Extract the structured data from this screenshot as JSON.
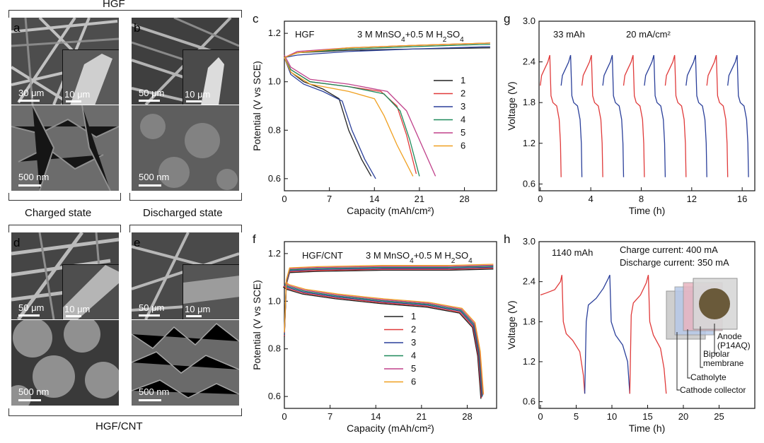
{
  "sem": {
    "top_group": "HGF",
    "bottom_group": "HGF/CNT",
    "charged": "Charged state",
    "discharged": "Discharged state",
    "panels": {
      "a": {
        "letter": "a",
        "scale_main": "30 μm",
        "scale_inset": "10 μm",
        "scale_bottom": "500 nm"
      },
      "b": {
        "letter": "b",
        "scale_main": "50 μm",
        "scale_inset": "10 μm",
        "scale_bottom": "500 nm"
      },
      "d": {
        "letter": "d",
        "scale_main": "50 μm",
        "scale_inset": "10 μm",
        "scale_bottom": "500 nm"
      },
      "e": {
        "letter": "e",
        "scale_main": "50 μm",
        "scale_inset": "10 μm",
        "scale_bottom": "500 nm"
      }
    }
  },
  "chart_data": [
    {
      "id": "c",
      "type": "line",
      "letter": "c",
      "annotation_left": "HGF",
      "annotation_right": "3 M MnSO4+0.5 M H2SO4",
      "xlabel": "Capacity (mAh/cm²)",
      "ylabel": "Potential (V vs SCE)",
      "xlim": [
        0,
        33
      ],
      "ylim": [
        0.55,
        1.25
      ],
      "xticks": [
        "0",
        "7",
        "14",
        "21",
        "28"
      ],
      "yticks": [
        "0.6",
        "0.8",
        "1.0",
        "1.2"
      ],
      "legend_position": "right",
      "series": [
        {
          "name": "1",
          "color": "#222222",
          "charge": [
            [
              0,
              1.1
            ],
            [
              2,
              1.12
            ],
            [
              10,
              1.13
            ],
            [
              20,
              1.135
            ],
            [
              32,
              1.14
            ]
          ],
          "discharge": [
            [
              0,
              1.1
            ],
            [
              1,
              1.04
            ],
            [
              3,
              1.0
            ],
            [
              6,
              0.97
            ],
            [
              8.5,
              0.93
            ],
            [
              10,
              0.8
            ],
            [
              12,
              0.68
            ],
            [
              13.5,
              0.61
            ]
          ]
        },
        {
          "name": "2",
          "color": "#e03a3a",
          "charge": [
            [
              0,
              1.1
            ],
            [
              2,
              1.12
            ],
            [
              10,
              1.14
            ],
            [
              20,
              1.15
            ],
            [
              32,
              1.16
            ]
          ],
          "discharge": [
            [
              0,
              1.1
            ],
            [
              1,
              1.05
            ],
            [
              4,
              1.0
            ],
            [
              10,
              0.98
            ],
            [
              15,
              0.96
            ],
            [
              17.5,
              0.9
            ],
            [
              19,
              0.78
            ],
            [
              20.5,
              0.62
            ]
          ]
        },
        {
          "name": "3",
          "color": "#2a3f9a",
          "charge": [
            [
              0,
              1.1
            ],
            [
              2,
              1.11
            ],
            [
              10,
              1.125
            ],
            [
              20,
              1.135
            ],
            [
              32,
              1.145
            ]
          ],
          "discharge": [
            [
              0,
              1.1
            ],
            [
              1,
              1.03
            ],
            [
              3,
              0.99
            ],
            [
              6,
              0.96
            ],
            [
              9,
              0.92
            ],
            [
              10.5,
              0.8
            ],
            [
              12.5,
              0.68
            ],
            [
              14.2,
              0.6
            ]
          ]
        },
        {
          "name": "4",
          "color": "#1e8a5a",
          "charge": [
            [
              0,
              1.1
            ],
            [
              2,
              1.12
            ],
            [
              10,
              1.135
            ],
            [
              20,
              1.145
            ],
            [
              32,
              1.155
            ]
          ],
          "discharge": [
            [
              0,
              1.1
            ],
            [
              1,
              1.05
            ],
            [
              4,
              1.0
            ],
            [
              10,
              0.98
            ],
            [
              15.5,
              0.95
            ],
            [
              18,
              0.88
            ],
            [
              19.5,
              0.76
            ],
            [
              21,
              0.61
            ]
          ]
        },
        {
          "name": "5",
          "color": "#c0408a",
          "charge": [
            [
              0,
              1.1
            ],
            [
              2,
              1.125
            ],
            [
              10,
              1.14
            ],
            [
              20,
              1.15
            ],
            [
              32,
              1.16
            ]
          ],
          "discharge": [
            [
              0,
              1.11
            ],
            [
              1,
              1.06
            ],
            [
              4,
              1.01
            ],
            [
              10,
              0.99
            ],
            [
              16,
              0.96
            ],
            [
              19,
              0.88
            ],
            [
              21,
              0.76
            ],
            [
              23.5,
              0.61
            ]
          ]
        },
        {
          "name": "6",
          "color": "#f0a020",
          "charge": [
            [
              0,
              1.1
            ],
            [
              2,
              1.12
            ],
            [
              10,
              1.14
            ],
            [
              20,
              1.15
            ],
            [
              32,
              1.16
            ]
          ],
          "discharge": [
            [
              0,
              1.1
            ],
            [
              1,
              1.04
            ],
            [
              4,
              0.99
            ],
            [
              10,
              0.96
            ],
            [
              14,
              0.93
            ],
            [
              15.5,
              0.86
            ],
            [
              17.5,
              0.74
            ],
            [
              20,
              0.61
            ]
          ]
        }
      ]
    },
    {
      "id": "f",
      "type": "line",
      "letter": "f",
      "annotation_left": "HGF/CNT",
      "annotation_right": "3 M MnSO4+0.5 M H2SO4",
      "xlabel": "Capacity (mAh/cm²)",
      "ylabel": "Potential (V vs SCE)",
      "xlim": [
        0,
        32.5
      ],
      "ylim": [
        0.55,
        1.25
      ],
      "xticks": [
        "0",
        "7",
        "14",
        "21",
        "28"
      ],
      "yticks": [
        "0.6",
        "0.8",
        "1.0",
        "1.2"
      ],
      "legend_position": "center-right",
      "series": [
        {
          "name": "1",
          "color": "#222222"
        },
        {
          "name": "2",
          "color": "#e03a3a"
        },
        {
          "name": "3",
          "color": "#2a3f9a"
        },
        {
          "name": "4",
          "color": "#1e8a5a"
        },
        {
          "name": "5",
          "color": "#c0408a"
        },
        {
          "name": "6",
          "color": "#f0a020"
        }
      ],
      "charge_curve": [
        [
          0,
          0.86
        ],
        [
          0.3,
          1.08
        ],
        [
          0.8,
          1.13
        ],
        [
          5,
          1.135
        ],
        [
          15,
          1.14
        ],
        [
          25,
          1.14
        ],
        [
          32,
          1.145
        ]
      ],
      "discharge_curve": [
        [
          0,
          1.07
        ],
        [
          0.5,
          1.06
        ],
        [
          3,
          1.04
        ],
        [
          8,
          1.02
        ],
        [
          15,
          1.0
        ],
        [
          22,
          0.985
        ],
        [
          27,
          0.96
        ],
        [
          29,
          0.9
        ],
        [
          29.8,
          0.78
        ],
        [
          30.3,
          0.6
        ]
      ]
    },
    {
      "id": "g",
      "type": "line",
      "letter": "g",
      "annotation_left": "33 mAh",
      "annotation_right": "20 mA/cm²",
      "xlabel": "Time (h)",
      "ylabel": "Voltage (V)",
      "xlim": [
        -0.1,
        17
      ],
      "ylim": [
        0.5,
        3.0
      ],
      "xticks": [
        "0",
        "4",
        "8",
        "12",
        "16"
      ],
      "yticks": [
        "0.6",
        "1.2",
        "1.8",
        "2.4",
        "3.0"
      ],
      "cycle_period_h": 1.65,
      "cycles": 10,
      "colors": [
        "#e03a3a",
        "#2a3f9a"
      ]
    },
    {
      "id": "h",
      "type": "line",
      "letter": "h",
      "annotation_left": "1140 mAh",
      "annotation_right_1": "Charge current: 400 mA",
      "annotation_right_2": "Discharge current: 350 mA",
      "xlabel": "Time (h)",
      "ylabel": "Voltage (V)",
      "xlim": [
        -0.2,
        30
      ],
      "ylim": [
        0.5,
        3.0
      ],
      "xticks": [
        "0",
        "5",
        "10",
        "15",
        "20",
        "25"
      ],
      "yticks": [
        "0.6",
        "1.2",
        "1.8",
        "2.4",
        "3.0"
      ],
      "colors": [
        "#e03a3a",
        "#2a3f9a"
      ],
      "cycles": [
        {
          "color": "#e03a3a",
          "points": [
            [
              0,
              2.2
            ],
            [
              0.8,
              2.23
            ],
            [
              2,
              2.28
            ],
            [
              2.8,
              2.4
            ],
            [
              3.0,
              2.5
            ],
            [
              3.2,
              1.8
            ],
            [
              3.6,
              1.62
            ],
            [
              4.5,
              1.52
            ],
            [
              5.5,
              1.35
            ],
            [
              6,
              1.0
            ],
            [
              6.2,
              0.72
            ]
          ]
        },
        {
          "color": "#2a3f9a",
          "points": [
            [
              6.2,
              0.72
            ],
            [
              6.4,
              1.8
            ],
            [
              6.7,
              2.05
            ],
            [
              7.8,
              2.15
            ],
            [
              8.8,
              2.3
            ],
            [
              9.5,
              2.45
            ],
            [
              9.7,
              2.5
            ],
            [
              9.9,
              1.8
            ],
            [
              10.5,
              1.6
            ],
            [
              11.5,
              1.45
            ],
            [
              12.2,
              1.2
            ],
            [
              12.5,
              0.72
            ]
          ]
        },
        {
          "color": "#e03a3a",
          "points": [
            [
              12.5,
              0.72
            ],
            [
              12.7,
              1.9
            ],
            [
              13,
              2.08
            ],
            [
              14,
              2.2
            ],
            [
              14.8,
              2.38
            ],
            [
              15.1,
              2.5
            ],
            [
              15.3,
              1.8
            ],
            [
              15.8,
              1.6
            ],
            [
              16.8,
              1.4
            ],
            [
              17.3,
              1.1
            ],
            [
              17.6,
              0.72
            ]
          ]
        }
      ],
      "diagram_labels": [
        "Anode\n(P14AQ)",
        "Bipolar\nmembrane",
        "Catholyte",
        "Cathode collector"
      ]
    }
  ]
}
